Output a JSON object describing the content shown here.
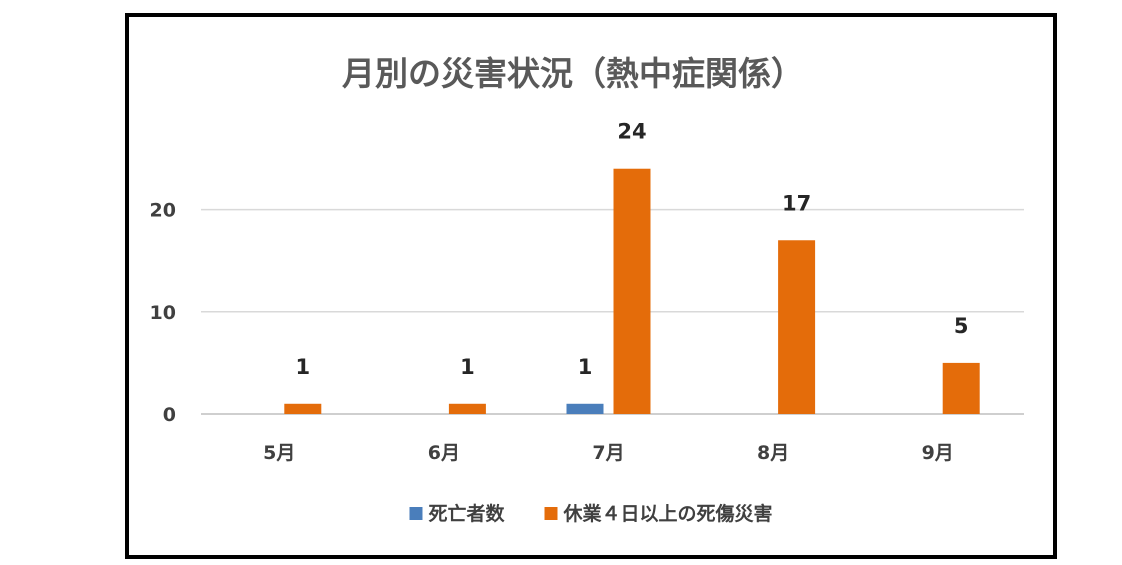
{
  "chart_data": {
    "type": "bar",
    "title": "月別の災害状況（熱中症関係）",
    "categories": [
      "5月",
      "6月",
      "7月",
      "8月",
      "9月"
    ],
    "series": [
      {
        "name": "死亡者数",
        "values": [
          null,
          null,
          1,
          null,
          null
        ],
        "color": "#4a7ebb"
      },
      {
        "name": "休業４日以上の死傷災害",
        "values": [
          1,
          1,
          24,
          17,
          5
        ],
        "color": "#e46c0a"
      }
    ],
    "xlabel": "",
    "ylabel": "",
    "ylim": [
      0,
      30
    ],
    "yticks": [
      0,
      10,
      20
    ],
    "grid": true,
    "legend": "bottom",
    "data_labels": true
  }
}
